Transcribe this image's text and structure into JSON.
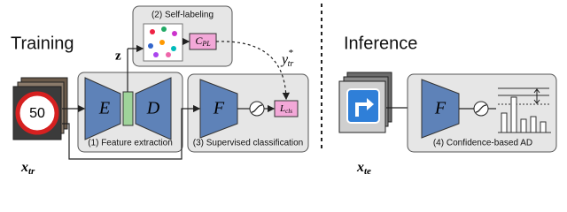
{
  "training": {
    "title": "Training"
  },
  "inference": {
    "title": "Inference"
  },
  "self_labeling": {
    "caption": "(2) Self-labeling",
    "classifier": {
      "label": "C",
      "sub": "PL"
    }
  },
  "latent": "z",
  "pseudo_label": {
    "label": "y",
    "sup": "*",
    "sub": "tr"
  },
  "train_input": {
    "label": "x",
    "sub": "tr",
    "sign_text": "50"
  },
  "feature_extraction": {
    "caption": "(1) Feature extraction",
    "encoder": "E",
    "decoder": "D"
  },
  "supervised": {
    "caption": "(3) Supervised classification",
    "network": "F",
    "loss": {
      "label": "L",
      "sub": "cls"
    }
  },
  "test_input": {
    "label": "x",
    "sub": "te"
  },
  "confidence": {
    "caption": "(4) Confidence-based AD",
    "network": "F"
  }
}
